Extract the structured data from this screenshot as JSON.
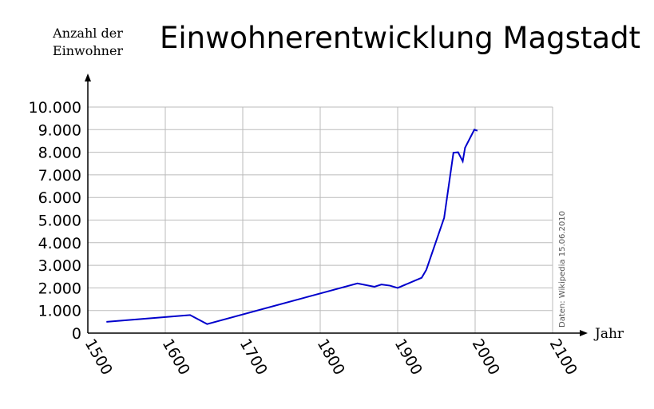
{
  "chart_data": {
    "type": "line",
    "title": "Einwohnerentwicklung Magstadt",
    "y_label": [
      "Anzahl der",
      "Einwohner"
    ],
    "x_label": "Jahr",
    "annotation": "Daten: Wikipedia 15.06.2010",
    "x": [
      1524,
      1632,
      1654,
      1848,
      1870,
      1879,
      1890,
      1900,
      1931,
      1937,
      1960,
      1972,
      1978,
      1984,
      1987,
      1999,
      2003
    ],
    "series": [
      {
        "color": "#0000cc",
        "values": [
          500,
          800,
          400,
          2200,
          2050,
          2150,
          2100,
          2000,
          2450,
          2800,
          5100,
          7980,
          8000,
          7600,
          8200,
          9000,
          8950
        ]
      }
    ],
    "xlim": [
      1500,
      2100
    ],
    "xticks": [
      1500,
      1600,
      1700,
      1800,
      1900,
      2000,
      2100
    ],
    "ylim": [
      0,
      10000
    ],
    "yticks": [
      0,
      {
        "value": 1000,
        "label": "1.000"
      },
      {
        "value": 2000,
        "label": "2.000"
      },
      {
        "value": 3000,
        "label": "3.000"
      },
      {
        "value": 4000,
        "label": "4.000"
      },
      {
        "value": 5000,
        "label": "5.000"
      },
      {
        "value": 6000,
        "label": "6.000"
      },
      {
        "value": 7000,
        "label": "7.000"
      },
      {
        "value": 8000,
        "label": "8.000"
      },
      {
        "value": 9000,
        "label": "9.000"
      },
      {
        "value": 10000,
        "label": "10.000"
      }
    ],
    "grid": true
  }
}
